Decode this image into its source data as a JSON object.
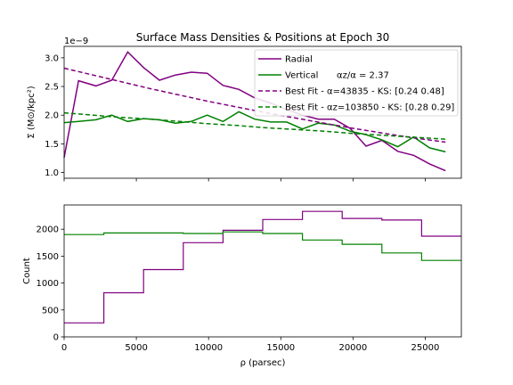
{
  "figure": {
    "title": "Surface Mass Densities & Positions at Epoch 30",
    "offset_text": "1e−9"
  },
  "chart_data": [
    {
      "type": "line",
      "title": "Surface Mass Densities & Positions at Epoch 30",
      "xlabel": "",
      "ylabel": "Σ (M⊙/kpc²)",
      "xlim": [
        0,
        27500
      ],
      "ylim": [
        0.9,
        3.2
      ],
      "y_scale_exponent": "1e−9",
      "yticks": [
        1.0,
        1.5,
        2.0,
        2.5,
        3.0
      ],
      "ytick_labels": [
        "1.0",
        "1.5",
        "2.0",
        "2.5",
        "3.0"
      ],
      "grid": false,
      "legend_position": "upper-right",
      "series": [
        {
          "name": "Radial",
          "color": "#800080",
          "style": "solid",
          "x": [
            0,
            1000,
            2200,
            3300,
            4400,
            5500,
            6600,
            7700,
            8800,
            9900,
            11000,
            12100,
            13200,
            14300,
            15400,
            16500,
            17600,
            18700,
            19800,
            20900,
            22000,
            23100,
            24200,
            25300,
            26400
          ],
          "y": [
            1.26,
            2.6,
            2.51,
            2.61,
            3.1,
            2.83,
            2.61,
            2.7,
            2.75,
            2.73,
            2.52,
            2.45,
            2.3,
            2.21,
            2.1,
            2.0,
            1.93,
            1.93,
            1.77,
            1.46,
            1.56,
            1.37,
            1.3,
            1.15,
            1.03
          ]
        },
        {
          "name": "Vertical",
          "label_extra": "αz/α = 2.37",
          "color": "#008000",
          "style": "solid",
          "x": [
            0,
            1000,
            2200,
            3300,
            4400,
            5500,
            6600,
            7700,
            8800,
            9900,
            11000,
            12100,
            13200,
            14300,
            15400,
            16500,
            17600,
            18700,
            19800,
            20900,
            22000,
            23100,
            24200,
            25300,
            26400
          ],
          "y": [
            1.87,
            1.89,
            1.92,
            2.0,
            1.89,
            1.94,
            1.92,
            1.86,
            1.89,
            2.0,
            1.89,
            2.06,
            1.93,
            1.88,
            1.88,
            1.76,
            1.86,
            1.83,
            1.72,
            1.66,
            1.57,
            1.45,
            1.62,
            1.43,
            1.36
          ]
        },
        {
          "name": "Best Fit - α=43835 - KS: [0.24 0.48]",
          "color": "#800080",
          "style": "dashed",
          "x": [
            0,
            2000,
            4000,
            6000,
            8000,
            10000,
            12000,
            14000,
            16000,
            18000,
            20000,
            22000,
            24000,
            26400
          ],
          "y": [
            2.82,
            2.7,
            2.58,
            2.46,
            2.35,
            2.24,
            2.14,
            2.04,
            1.95,
            1.86,
            1.77,
            1.69,
            1.61,
            1.53
          ]
        },
        {
          "name": "Best Fit - αz=103850 - KS: [0.28 0.29]",
          "color": "#008000",
          "style": "dashed",
          "x": [
            0,
            2000,
            4000,
            6000,
            8000,
            10000,
            12000,
            14000,
            16000,
            18000,
            20000,
            22000,
            24000,
            26400
          ],
          "y": [
            2.04,
            2.0,
            1.96,
            1.93,
            1.89,
            1.85,
            1.82,
            1.78,
            1.75,
            1.72,
            1.68,
            1.65,
            1.62,
            1.58
          ]
        }
      ]
    },
    {
      "type": "step",
      "xlabel": "ρ (parsec)",
      "ylabel": "Count",
      "xlim": [
        0,
        27500
      ],
      "ylim": [
        0,
        2450
      ],
      "xticks": [
        0,
        5000,
        10000,
        15000,
        20000,
        25000
      ],
      "xtick_labels": [
        "0",
        "5000",
        "10000",
        "15000",
        "20000",
        "25000"
      ],
      "yticks": [
        0,
        500,
        1000,
        1500,
        2000
      ],
      "ytick_labels": [
        "0",
        "500",
        "1000",
        "1500",
        "2000"
      ],
      "grid": false,
      "bin_edges": [
        0,
        2750,
        5500,
        8250,
        11000,
        13750,
        16500,
        19250,
        22000,
        24750,
        27500
      ],
      "series": [
        {
          "color": "#800080",
          "counts": [
            260,
            820,
            1250,
            1750,
            1980,
            2180,
            2330,
            2200,
            2170,
            1870
          ]
        },
        {
          "color": "#008000",
          "counts": [
            1900,
            1930,
            1930,
            1920,
            1950,
            1920,
            1800,
            1720,
            1560,
            1420
          ]
        }
      ]
    }
  ]
}
